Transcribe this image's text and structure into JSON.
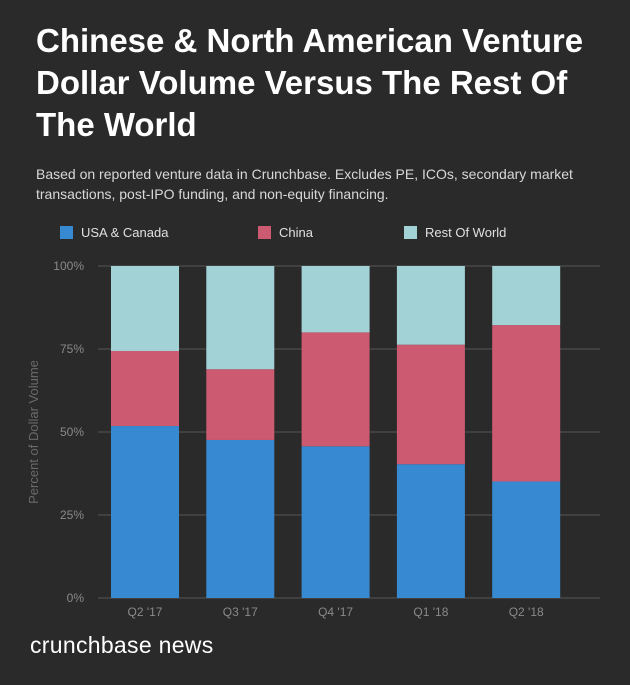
{
  "title": "Chinese & North American Venture Dollar Volume Versus The Rest Of The World",
  "subtitle": "Based on reported venture data in Crunchbase. Excludes PE, ICOs, secondary market transactions, post-IPO funding, and non-equity financing.",
  "brand": "crunchbase news",
  "chart_data": {
    "type": "bar",
    "stacked": true,
    "title": "Chinese & North American Venture Dollar Volume Versus The Rest Of The World",
    "xlabel": "",
    "ylabel": "Percent of Dollar Volume",
    "ylim": [
      0,
      100
    ],
    "yticks": [
      "0%",
      "25%",
      "50%",
      "75%",
      "100%"
    ],
    "ytick_values": [
      0,
      25,
      50,
      75,
      100
    ],
    "grid": true,
    "legend_position": "top",
    "categories": [
      "Q2 '17",
      "Q3 '17",
      "Q4 '17",
      "Q1 '18",
      "Q2 '18"
    ],
    "series": [
      {
        "name": "USA & Canada",
        "color": "#3789d1",
        "values": [
          51.8,
          47.6,
          45.7,
          40.3,
          35.1
        ]
      },
      {
        "name": "China",
        "color": "#cc5a70",
        "values": [
          22.6,
          21.3,
          34.3,
          36.0,
          47.1
        ]
      },
      {
        "name": "Rest Of World",
        "color": "#a2d2d5",
        "values": [
          25.6,
          31.1,
          20.0,
          23.7,
          17.8
        ]
      }
    ]
  }
}
